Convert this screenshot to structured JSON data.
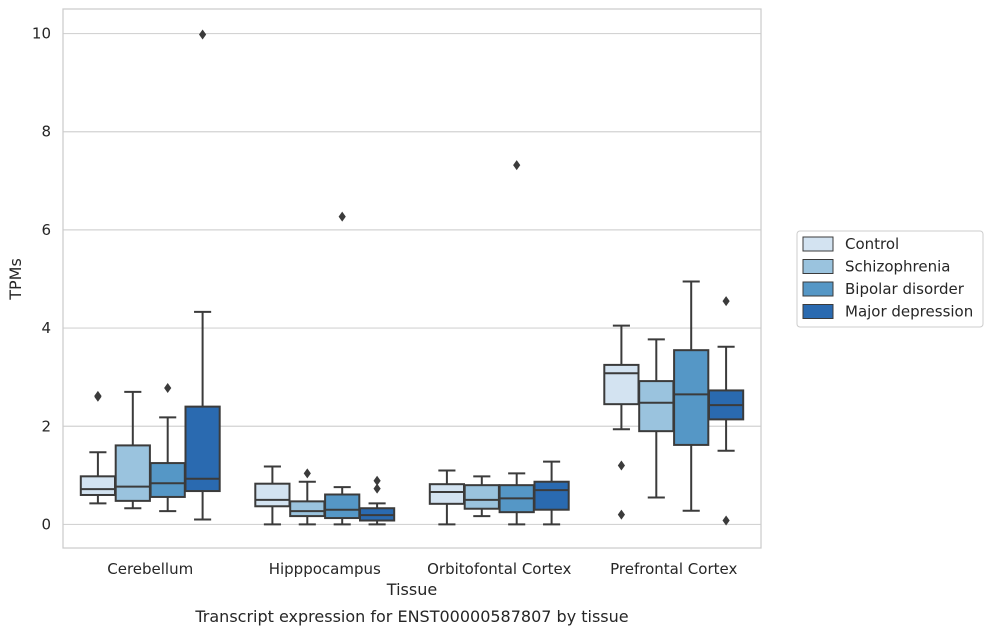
{
  "chart_data": {
    "type": "box",
    "title": "Transcript expression for ENST00000587807 by tissue",
    "xlabel": "Tissue",
    "ylabel": "TPMs",
    "ylim": [
      -0.48,
      10.5
    ],
    "yticks": [
      0,
      2,
      4,
      6,
      8,
      10
    ],
    "grid": "horizontal",
    "legend_position": "right",
    "categories": [
      "Cerebellum",
      "Hipppocampus",
      "Orbitofontal Cortex",
      "Prefrontal Cortex"
    ],
    "series": [
      {
        "name": "Control",
        "color": "#d3e3f1",
        "boxes": [
          {
            "whislo": 0.43,
            "q1": 0.6,
            "med": 0.72,
            "q3": 0.98,
            "whishi": 1.47,
            "fliers": [
              2.6,
              2.62
            ]
          },
          {
            "whislo": 0.0,
            "q1": 0.37,
            "med": 0.5,
            "q3": 0.83,
            "whishi": 1.18,
            "fliers": []
          },
          {
            "whislo": 0.0,
            "q1": 0.42,
            "med": 0.66,
            "q3": 0.82,
            "whishi": 1.1,
            "fliers": []
          },
          {
            "whislo": 1.94,
            "q1": 2.45,
            "med": 3.08,
            "q3": 3.25,
            "whishi": 4.05,
            "fliers": [
              1.2,
              0.2
            ]
          }
        ]
      },
      {
        "name": "Schizophrenia",
        "color": "#9ac3de",
        "boxes": [
          {
            "whislo": 0.33,
            "q1": 0.48,
            "med": 0.77,
            "q3": 1.61,
            "whishi": 2.7,
            "fliers": []
          },
          {
            "whislo": 0.0,
            "q1": 0.17,
            "med": 0.27,
            "q3": 0.47,
            "whishi": 0.87,
            "fliers": [
              1.04
            ]
          },
          {
            "whislo": 0.17,
            "q1": 0.32,
            "med": 0.5,
            "q3": 0.8,
            "whishi": 0.98,
            "fliers": []
          },
          {
            "whislo": 0.55,
            "q1": 1.9,
            "med": 2.48,
            "q3": 2.92,
            "whishi": 3.77,
            "fliers": []
          }
        ]
      },
      {
        "name": "Bipolar disorder",
        "color": "#5597c6",
        "boxes": [
          {
            "whislo": 0.27,
            "q1": 0.56,
            "med": 0.84,
            "q3": 1.25,
            "whishi": 2.18,
            "fliers": [
              2.78
            ]
          },
          {
            "whislo": 0.0,
            "q1": 0.13,
            "med": 0.3,
            "q3": 0.61,
            "whishi": 0.76,
            "fliers": [
              6.27
            ]
          },
          {
            "whislo": 0.0,
            "q1": 0.25,
            "med": 0.53,
            "q3": 0.8,
            "whishi": 1.04,
            "fliers": [
              7.32
            ]
          },
          {
            "whislo": 0.28,
            "q1": 1.62,
            "med": 2.65,
            "q3": 3.55,
            "whishi": 4.95,
            "fliers": []
          }
        ]
      },
      {
        "name": "Major depression",
        "color": "#2a6ab0",
        "boxes": [
          {
            "whislo": 0.1,
            "q1": 0.68,
            "med": 0.93,
            "q3": 2.4,
            "whishi": 4.33,
            "fliers": [
              9.98
            ]
          },
          {
            "whislo": 0.0,
            "q1": 0.08,
            "med": 0.19,
            "q3": 0.33,
            "whishi": 0.43,
            "fliers": [
              0.89,
              0.73
            ]
          },
          {
            "whislo": 0.0,
            "q1": 0.3,
            "med": 0.7,
            "q3": 0.87,
            "whishi": 1.28,
            "fliers": []
          },
          {
            "whislo": 1.5,
            "q1": 2.14,
            "med": 2.43,
            "q3": 2.73,
            "whishi": 3.62,
            "fliers": [
              4.55,
              0.08
            ]
          }
        ]
      }
    ]
  }
}
